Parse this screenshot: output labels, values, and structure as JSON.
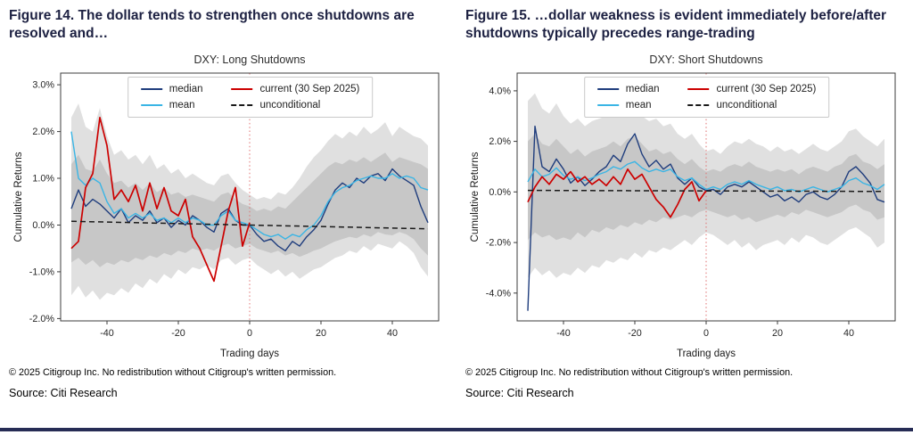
{
  "page": {
    "headings": [
      "Figure 14. The dollar tends to strengthen once shutdowns are resolved and…",
      "Figure 15. …dollar weakness is evident immediately before/after shutdowns typically precedes range-trading"
    ],
    "copyright": "© 2025 Citigroup Inc. No redistribution without Citigroup's written permission.",
    "source": "Source: Citi Research",
    "accent_bar_color": "#262c55"
  },
  "chart_data": [
    {
      "type": "line",
      "title": "DXY: Long Shutdowns",
      "xlabel": "Trading days",
      "ylabel": "Cumulative Returns",
      "xlim": [
        -53,
        53
      ],
      "ylim": [
        -2.05,
        3.25
      ],
      "xticks": [
        -40,
        -20,
        0,
        20,
        40
      ],
      "xtick_labels": [
        "-40",
        "-20",
        "0",
        "20",
        "40"
      ],
      "yticks": [
        3.0,
        2.0,
        1.0,
        0.0,
        -1.0,
        -2.0
      ],
      "ytick_labels": [
        "3.0%",
        "2.0%",
        "1.0%",
        "0.0%",
        "-1.0%",
        "-2.0%"
      ],
      "event_line": {
        "x": 0,
        "color": "#e07070"
      },
      "x": [
        -50,
        -48,
        -46,
        -44,
        -42,
        -40,
        -38,
        -36,
        -34,
        -32,
        -30,
        -28,
        -26,
        -24,
        -22,
        -20,
        -18,
        -16,
        -14,
        -12,
        -10,
        -8,
        -6,
        -4,
        -2,
        0,
        2,
        4,
        6,
        8,
        10,
        12,
        14,
        16,
        18,
        20,
        22,
        24,
        26,
        28,
        30,
        32,
        34,
        36,
        38,
        40,
        42,
        44,
        46,
        48,
        50
      ],
      "bands": [
        {
          "name": "outer",
          "color": "#dadada",
          "opacity": 0.85,
          "upper": [
            2.3,
            2.6,
            2.1,
            2.0,
            2.5,
            1.9,
            1.5,
            1.6,
            1.4,
            1.5,
            1.3,
            1.5,
            1.2,
            1.3,
            1.1,
            1.2,
            1.0,
            1.1,
            1.0,
            0.9,
            0.85,
            1.05,
            1.1,
            0.9,
            0.75,
            0.65,
            0.55,
            0.6,
            0.55,
            0.7,
            0.65,
            0.8,
            1.0,
            1.25,
            1.45,
            1.6,
            1.8,
            1.95,
            1.85,
            2.0,
            1.9,
            2.1,
            1.95,
            2.05,
            2.2,
            1.9,
            2.1,
            2.0,
            1.9,
            1.85,
            1.7
          ],
          "lower": [
            -1.5,
            -1.3,
            -1.55,
            -1.4,
            -1.6,
            -1.45,
            -1.5,
            -1.35,
            -1.45,
            -1.25,
            -1.35,
            -1.15,
            -1.25,
            -1.05,
            -1.15,
            -0.95,
            -1.05,
            -0.9,
            -0.95,
            -0.85,
            -0.95,
            -0.75,
            -0.7,
            -0.85,
            -0.75,
            -0.7,
            -0.85,
            -0.95,
            -1.05,
            -0.95,
            -1.1,
            -1.0,
            -1.15,
            -1.05,
            -0.95,
            -0.9,
            -0.8,
            -0.7,
            -0.65,
            -0.55,
            -0.6,
            -0.45,
            -0.55,
            -0.4,
            -0.45,
            -0.5,
            -0.35,
            -0.45,
            -0.6,
            -0.9,
            -1.1
          ]
        },
        {
          "name": "inner",
          "color": "#c2c2c2",
          "opacity": 0.85,
          "upper": [
            1.3,
            1.5,
            1.2,
            1.15,
            1.4,
            1.1,
            0.9,
            0.95,
            0.8,
            0.9,
            0.75,
            0.9,
            0.7,
            0.8,
            0.65,
            0.7,
            0.6,
            0.65,
            0.6,
            0.55,
            0.5,
            0.65,
            0.7,
            0.55,
            0.45,
            0.4,
            0.3,
            0.35,
            0.3,
            0.4,
            0.35,
            0.5,
            0.65,
            0.8,
            0.95,
            1.1,
            1.25,
            1.35,
            1.3,
            1.4,
            1.35,
            1.45,
            1.35,
            1.45,
            1.55,
            1.35,
            1.45,
            1.4,
            1.35,
            1.3,
            1.2
          ],
          "lower": [
            -0.8,
            -0.7,
            -0.85,
            -0.75,
            -0.9,
            -0.8,
            -0.85,
            -0.75,
            -0.8,
            -0.7,
            -0.75,
            -0.65,
            -0.7,
            -0.6,
            -0.65,
            -0.55,
            -0.6,
            -0.5,
            -0.55,
            -0.5,
            -0.55,
            -0.45,
            -0.4,
            -0.5,
            -0.45,
            -0.4,
            -0.5,
            -0.55,
            -0.6,
            -0.55,
            -0.65,
            -0.6,
            -0.68,
            -0.62,
            -0.55,
            -0.5,
            -0.42,
            -0.35,
            -0.3,
            -0.25,
            -0.28,
            -0.2,
            -0.25,
            -0.15,
            -0.2,
            -0.22,
            -0.15,
            -0.2,
            -0.3,
            -0.5,
            -0.65
          ]
        }
      ],
      "series": [
        {
          "name": "median",
          "color": "#1f3d7d",
          "width": 1.4,
          "values": [
            0.35,
            0.75,
            0.4,
            0.55,
            0.45,
            0.3,
            0.15,
            0.35,
            0.05,
            0.2,
            0.1,
            0.3,
            0.05,
            0.15,
            -0.05,
            0.1,
            0.0,
            0.2,
            0.1,
            -0.05,
            -0.15,
            0.25,
            0.35,
            0.1,
            0.0,
            0.0,
            -0.2,
            -0.35,
            -0.3,
            -0.45,
            -0.55,
            -0.35,
            -0.45,
            -0.25,
            -0.1,
            0.1,
            0.45,
            0.75,
            0.9,
            0.8,
            1.0,
            0.9,
            1.05,
            1.1,
            0.95,
            1.2,
            1.05,
            0.95,
            0.85,
            0.4,
            0.05
          ]
        },
        {
          "name": "mean",
          "color": "#3ab5e5",
          "width": 1.4,
          "values": [
            2.0,
            1.0,
            0.85,
            1.0,
            0.9,
            0.5,
            0.25,
            0.35,
            0.15,
            0.25,
            0.15,
            0.25,
            0.1,
            0.15,
            0.05,
            0.15,
            0.05,
            0.15,
            0.1,
            0.0,
            0.0,
            0.2,
            0.3,
            0.1,
            0.05,
            0.0,
            -0.1,
            -0.2,
            -0.25,
            -0.2,
            -0.3,
            -0.2,
            -0.25,
            -0.1,
            0.0,
            0.2,
            0.5,
            0.7,
            0.8,
            0.85,
            0.95,
            1.0,
            1.05,
            1.0,
            1.0,
            1.1,
            1.0,
            1.05,
            1.0,
            0.8,
            0.75
          ]
        },
        {
          "name": "current (30 Sep 2025)",
          "color": "#cc0000",
          "width": 1.7,
          "values": [
            -0.5,
            -0.35,
            0.8,
            1.1,
            2.3,
            1.7,
            0.55,
            0.75,
            0.5,
            0.85,
            0.3,
            0.9,
            0.35,
            0.8,
            0.3,
            0.2,
            0.55,
            -0.25,
            -0.5,
            -0.85,
            -1.2,
            -0.45,
            0.3,
            0.8,
            -0.45,
            0.05,
            null,
            null,
            null,
            null,
            null,
            null,
            null,
            null,
            null,
            null,
            null,
            null,
            null,
            null,
            null,
            null,
            null,
            null,
            null,
            null,
            null,
            null,
            null,
            null,
            null
          ]
        },
        {
          "name": "unconditional",
          "color": "#1a1a1a",
          "width": 1.5,
          "dash": true,
          "x": [
            -50,
            50
          ],
          "values": [
            0.08,
            -0.08
          ]
        }
      ]
    },
    {
      "type": "line",
      "title": "DXY: Short Shutdowns",
      "xlabel": "Trading days",
      "ylabel": "Cumulative Returns",
      "xlim": [
        -53,
        53
      ],
      "ylim": [
        -5.1,
        4.7
      ],
      "xticks": [
        -40,
        -20,
        0,
        20,
        40
      ],
      "xtick_labels": [
        "-40",
        "-20",
        "0",
        "20",
        "40"
      ],
      "yticks": [
        4.0,
        2.0,
        0.0,
        -2.0,
        -4.0
      ],
      "ytick_labels": [
        "4.0%",
        "2.0%",
        "0.0%",
        "-2.0%",
        "-4.0%"
      ],
      "event_line": {
        "x": 0,
        "color": "#e07070"
      },
      "x": [
        -50,
        -48,
        -46,
        -44,
        -42,
        -40,
        -38,
        -36,
        -34,
        -32,
        -30,
        -28,
        -26,
        -24,
        -22,
        -20,
        -18,
        -16,
        -14,
        -12,
        -10,
        -8,
        -6,
        -4,
        -2,
        0,
        2,
        4,
        6,
        8,
        10,
        12,
        14,
        16,
        18,
        20,
        22,
        24,
        26,
        28,
        30,
        32,
        34,
        36,
        38,
        40,
        42,
        44,
        46,
        48,
        50
      ],
      "bands": [
        {
          "name": "outer",
          "color": "#dadada",
          "opacity": 0.85,
          "upper": [
            3.6,
            3.9,
            3.3,
            3.1,
            3.5,
            3.0,
            2.7,
            2.9,
            2.6,
            2.8,
            2.9,
            3.0,
            3.2,
            3.0,
            3.3,
            3.4,
            3.0,
            2.8,
            2.9,
            2.6,
            2.7,
            2.3,
            2.1,
            2.3,
            1.9,
            1.6,
            1.7,
            1.5,
            1.8,
            2.0,
            1.9,
            2.1,
            1.9,
            1.8,
            1.6,
            1.8,
            1.6,
            1.7,
            1.5,
            1.7,
            1.9,
            1.7,
            1.6,
            1.8,
            2.0,
            2.4,
            2.5,
            2.2,
            2.0,
            1.8,
            2.1
          ],
          "lower": [
            -3.4,
            -3.0,
            -3.3,
            -3.1,
            -3.4,
            -3.2,
            -3.3,
            -3.0,
            -3.2,
            -2.9,
            -3.0,
            -2.7,
            -2.8,
            -2.6,
            -2.7,
            -2.4,
            -2.6,
            -2.3,
            -2.4,
            -2.2,
            -2.3,
            -2.1,
            -1.9,
            -2.1,
            -1.8,
            -1.6,
            -1.7,
            -1.9,
            -2.1,
            -1.9,
            -2.2,
            -2.0,
            -2.3,
            -2.1,
            -2.0,
            -1.9,
            -2.1,
            -1.8,
            -2.0,
            -1.7,
            -1.8,
            -2.0,
            -2.1,
            -1.9,
            -1.7,
            -1.5,
            -1.4,
            -1.6,
            -1.8,
            -2.2,
            -2.0
          ]
        },
        {
          "name": "inner",
          "color": "#c2c2c2",
          "opacity": 0.85,
          "upper": [
            2.0,
            2.3,
            1.9,
            1.8,
            2.1,
            1.8,
            1.5,
            1.7,
            1.4,
            1.6,
            1.7,
            1.8,
            2.0,
            1.8,
            2.1,
            2.2,
            1.9,
            1.6,
            1.7,
            1.5,
            1.6,
            1.3,
            1.1,
            1.3,
            1.0,
            0.8,
            0.9,
            0.8,
            1.0,
            1.1,
            1.0,
            1.2,
            1.0,
            0.9,
            0.8,
            0.9,
            0.8,
            0.9,
            0.7,
            0.9,
            1.0,
            0.9,
            0.8,
            1.0,
            1.1,
            1.4,
            1.5,
            1.2,
            1.1,
            0.9,
            1.1
          ],
          "lower": [
            -1.9,
            -1.6,
            -1.8,
            -1.7,
            -1.9,
            -1.8,
            -1.9,
            -1.6,
            -1.8,
            -1.5,
            -1.6,
            -1.4,
            -1.5,
            -1.3,
            -1.4,
            -1.2,
            -1.3,
            -1.1,
            -1.2,
            -1.0,
            -1.1,
            -1.0,
            -0.9,
            -1.0,
            -0.8,
            -0.7,
            -0.8,
            -0.9,
            -1.0,
            -0.9,
            -1.1,
            -1.0,
            -1.2,
            -1.1,
            -1.0,
            -0.9,
            -1.0,
            -0.8,
            -0.9,
            -0.7,
            -0.8,
            -0.9,
            -1.0,
            -0.9,
            -0.8,
            -0.6,
            -0.5,
            -0.7,
            -0.8,
            -1.1,
            -1.0
          ]
        }
      ],
      "series": [
        {
          "name": "median",
          "color": "#1f3d7d",
          "width": 1.4,
          "values": [
            -4.7,
            2.6,
            1.0,
            0.8,
            1.3,
            0.9,
            0.35,
            0.6,
            0.25,
            0.5,
            0.8,
            1.0,
            1.45,
            1.2,
            1.9,
            2.3,
            1.5,
            1.0,
            1.25,
            0.9,
            1.1,
            0.55,
            0.3,
            0.55,
            0.2,
            0.05,
            0.1,
            -0.1,
            0.2,
            0.3,
            0.2,
            0.4,
            0.2,
            0.0,
            -0.2,
            -0.1,
            -0.35,
            -0.2,
            -0.4,
            -0.1,
            0.0,
            -0.2,
            -0.3,
            -0.1,
            0.2,
            0.8,
            1.0,
            0.7,
            0.35,
            -0.3,
            -0.4
          ]
        },
        {
          "name": "mean",
          "color": "#3ab5e5",
          "width": 1.4,
          "values": [
            0.4,
            0.9,
            0.6,
            0.7,
            0.95,
            0.65,
            0.5,
            0.6,
            0.45,
            0.55,
            0.7,
            0.8,
            1.0,
            0.9,
            1.1,
            1.2,
            0.95,
            0.8,
            0.9,
            0.8,
            0.9,
            0.6,
            0.45,
            0.55,
            0.3,
            0.1,
            0.2,
            0.1,
            0.3,
            0.4,
            0.3,
            0.45,
            0.3,
            0.2,
            0.1,
            0.2,
            0.05,
            0.1,
            0.0,
            0.1,
            0.2,
            0.1,
            0.0,
            0.1,
            0.2,
            0.45,
            0.55,
            0.35,
            0.25,
            0.1,
            0.3
          ]
        },
        {
          "name": "current (30 Sep 2025)",
          "color": "#cc0000",
          "width": 1.7,
          "values": [
            -0.4,
            0.2,
            0.6,
            0.3,
            0.7,
            0.5,
            0.8,
            0.4,
            0.6,
            0.3,
            0.5,
            0.25,
            0.6,
            0.3,
            0.9,
            0.5,
            0.7,
            0.2,
            -0.3,
            -0.6,
            -1.0,
            -0.5,
            0.1,
            0.4,
            -0.35,
            0.05,
            null,
            null,
            null,
            null,
            null,
            null,
            null,
            null,
            null,
            null,
            null,
            null,
            null,
            null,
            null,
            null,
            null,
            null,
            null,
            null,
            null,
            null,
            null,
            null,
            null
          ]
        },
        {
          "name": "unconditional",
          "color": "#1a1a1a",
          "width": 1.5,
          "dash": true,
          "x": [
            -50,
            50
          ],
          "values": [
            0.06,
            0.02
          ]
        }
      ]
    }
  ]
}
